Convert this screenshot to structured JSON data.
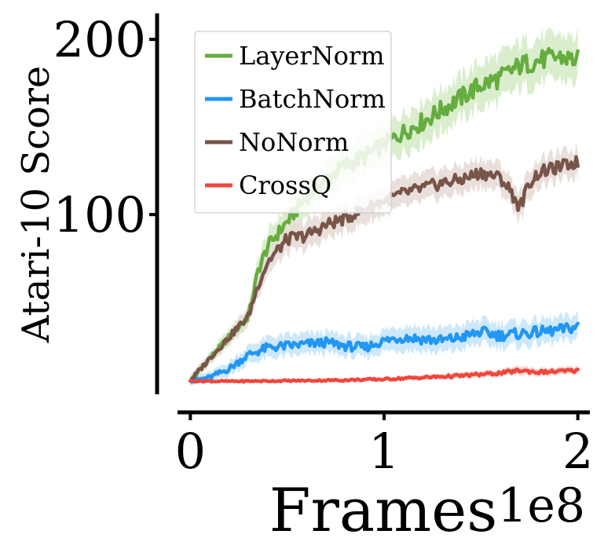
{
  "chart_data": {
    "type": "line",
    "xlabel": "Frames",
    "ylabel": "Atari-10 Score",
    "x_exponent_label": "1e8",
    "xlim": [
      -0.05,
      2.05
    ],
    "ylim": [
      -12,
      218
    ],
    "xticks": [
      0,
      1,
      2
    ],
    "xtick_labels": [
      "0",
      "1",
      "2"
    ],
    "yticks": [
      100,
      200
    ],
    "ytick_labels": [
      "100",
      "200"
    ],
    "grid": false,
    "legend_position": "top-left",
    "shaded_band": true,
    "series": [
      {
        "name": "LayerNorm",
        "color": "#66ad3f",
        "band_color": "#d6ecc9",
        "x": [
          0,
          0.1,
          0.2,
          0.25,
          0.3,
          0.35,
          0.4,
          0.5,
          0.6,
          0.7,
          0.8,
          0.9,
          1.0,
          1.1,
          1.2,
          1.3,
          1.4,
          1.5,
          1.6,
          1.7,
          1.8,
          1.9,
          2.0
        ],
        "y": [
          5,
          18,
          30,
          36,
          42,
          68,
          82,
          96,
          110,
          120,
          128,
          133,
          140,
          147,
          153,
          160,
          167,
          174,
          178,
          185,
          188,
          190,
          188
        ],
        "band": [
          3,
          3,
          4,
          5,
          5,
          7,
          8,
          9,
          10,
          10,
          11,
          11,
          11,
          11,
          12,
          12,
          12,
          13,
          13,
          13,
          13,
          13,
          13
        ]
      },
      {
        "name": "BatchNorm",
        "color": "#2196f3",
        "band_color": "#c8e6fb",
        "x": [
          0,
          0.1,
          0.2,
          0.3,
          0.4,
          0.5,
          0.6,
          0.7,
          0.8,
          0.9,
          1.0,
          1.1,
          1.2,
          1.3,
          1.4,
          1.5,
          1.6,
          1.7,
          1.8,
          1.9,
          2.0
        ],
        "y": [
          5,
          7,
          12,
          20,
          24,
          25,
          26,
          27,
          25,
          24,
          28,
          30,
          29,
          28,
          30,
          33,
          31,
          32,
          33,
          34,
          36
        ],
        "band": [
          2,
          3,
          4,
          5,
          6,
          6,
          6,
          6,
          6,
          6,
          6,
          7,
          7,
          7,
          7,
          7,
          7,
          7,
          7,
          7,
          7
        ]
      },
      {
        "name": "NoNorm",
        "color": "#785548",
        "band_color": "#e7dbd7",
        "x": [
          0,
          0.1,
          0.2,
          0.25,
          0.3,
          0.35,
          0.4,
          0.5,
          0.6,
          0.7,
          0.8,
          0.9,
          1.0,
          1.1,
          1.2,
          1.3,
          1.4,
          1.5,
          1.6,
          1.65,
          1.7,
          1.75,
          1.8,
          1.9,
          2.0
        ],
        "y": [
          5,
          18,
          30,
          36,
          42,
          60,
          73,
          86,
          88,
          94,
          98,
          103,
          108,
          112,
          115,
          118,
          120,
          124,
          121,
          114,
          104,
          118,
          124,
          127,
          130
        ],
        "band": [
          3,
          3,
          4,
          5,
          5,
          6,
          7,
          8,
          8,
          8,
          8,
          8,
          8,
          8,
          8,
          8,
          8,
          8,
          8,
          8,
          8,
          8,
          8,
          8,
          8
        ]
      },
      {
        "name": "CrossQ",
        "color": "#f0463c",
        "band_color": "#f7d1ce",
        "x": [
          0,
          0.2,
          0.4,
          0.6,
          0.8,
          1.0,
          1.2,
          1.4,
          1.6,
          1.7,
          1.8,
          1.9,
          2.0
        ],
        "y": [
          5,
          4.8,
          5,
          5.2,
          5.5,
          6,
          7,
          8,
          9.5,
          11,
          10,
          10.5,
          11
        ],
        "band": [
          1,
          1,
          1,
          1,
          1.2,
          1.3,
          1.5,
          1.8,
          2,
          2.5,
          2.2,
          2.2,
          2.2
        ]
      }
    ]
  }
}
